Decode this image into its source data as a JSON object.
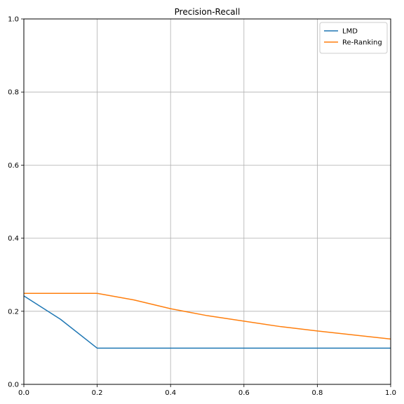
{
  "chart_data": {
    "type": "line",
    "title": "Precision-Recall",
    "xlabel": "",
    "ylabel": "",
    "xlim": [
      0,
      1
    ],
    "ylim": [
      0,
      1
    ],
    "x_ticks": [
      "0.0",
      "0.2",
      "0.4",
      "0.6",
      "0.8",
      "1.0"
    ],
    "y_ticks": [
      "0.0",
      "0.2",
      "0.4",
      "0.6",
      "0.8",
      "1.0"
    ],
    "grid": true,
    "legend_position": "top-right",
    "series": [
      {
        "name": "LMD",
        "color": "#1f77b4",
        "x": [
          0.0,
          0.1,
          0.2,
          0.3,
          0.4,
          0.5,
          0.6,
          0.7,
          0.8,
          0.9,
          1.0
        ],
        "y": [
          0.242,
          0.178,
          0.099,
          0.099,
          0.099,
          0.099,
          0.099,
          0.099,
          0.099,
          0.099,
          0.099
        ]
      },
      {
        "name": "Re-Ranking",
        "color": "#ff7f0e",
        "x": [
          0.0,
          0.1,
          0.2,
          0.3,
          0.4,
          0.5,
          0.6,
          0.7,
          0.8,
          0.9,
          1.0
        ],
        "y": [
          0.249,
          0.249,
          0.249,
          0.231,
          0.207,
          0.188,
          0.173,
          0.158,
          0.146,
          0.135,
          0.124
        ]
      }
    ]
  }
}
